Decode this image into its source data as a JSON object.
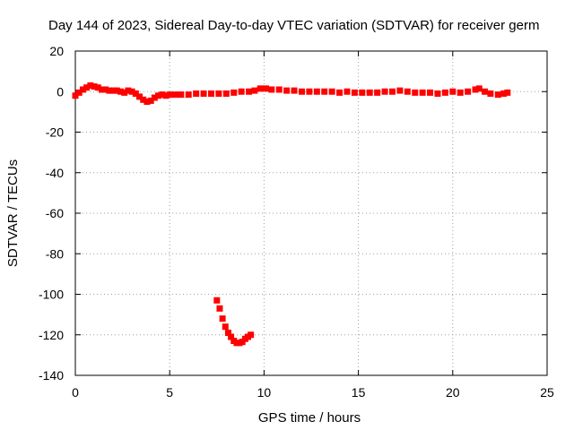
{
  "chart_data": {
    "type": "scatter",
    "title": "Day 144 of 2023, Sidereal Day-to-day VTEC variation (SDTVAR) for receiver germ",
    "xlabel": "GPS time / hours",
    "ylabel": "SDTVAR / TECUs",
    "xlim": [
      0,
      25
    ],
    "ylim": [
      -140,
      20
    ],
    "xticks": [
      0,
      5,
      10,
      15,
      20,
      25
    ],
    "yticks": [
      20,
      0,
      -20,
      -40,
      -60,
      -80,
      -100,
      -120,
      -140
    ],
    "grid": true,
    "series_color": "#ff0000",
    "series": [
      {
        "points": [
          [
            0.0,
            -2
          ],
          [
            0.2,
            -0.5
          ],
          [
            0.4,
            1
          ],
          [
            0.6,
            2
          ],
          [
            0.8,
            3
          ],
          [
            1.0,
            2.5
          ],
          [
            1.2,
            2
          ],
          [
            1.4,
            1
          ],
          [
            1.6,
            1
          ],
          [
            1.8,
            0.5
          ],
          [
            2.0,
            0.5
          ],
          [
            2.2,
            0.5
          ],
          [
            2.4,
            0
          ],
          [
            2.6,
            -0.5
          ],
          [
            2.8,
            0.5
          ],
          [
            3.0,
            0
          ],
          [
            3.2,
            -1
          ],
          [
            3.4,
            -2.5
          ],
          [
            3.6,
            -4
          ],
          [
            3.8,
            -5
          ],
          [
            4.0,
            -4.5
          ],
          [
            4.2,
            -3
          ],
          [
            4.4,
            -2
          ],
          [
            4.6,
            -1.5
          ],
          [
            4.8,
            -2
          ],
          [
            5.0,
            -1.5
          ],
          [
            5.3,
            -1.5
          ],
          [
            5.6,
            -1.5
          ],
          [
            6.0,
            -1.5
          ],
          [
            6.4,
            -1
          ],
          [
            6.8,
            -1
          ],
          [
            7.2,
            -1
          ],
          [
            7.6,
            -1
          ],
          [
            8.0,
            -1
          ],
          [
            8.4,
            -0.5
          ],
          [
            8.8,
            0
          ],
          [
            9.2,
            0
          ],
          [
            9.5,
            0.5
          ],
          [
            9.8,
            1.5
          ],
          [
            10.1,
            1.5
          ],
          [
            10.4,
            1
          ],
          [
            10.8,
            1
          ],
          [
            11.2,
            0.5
          ],
          [
            11.6,
            0.5
          ],
          [
            12.0,
            0
          ],
          [
            12.4,
            0
          ],
          [
            12.8,
            0
          ],
          [
            13.2,
            0
          ],
          [
            13.6,
            0
          ],
          [
            14.0,
            -0.5
          ],
          [
            14.4,
            0
          ],
          [
            14.8,
            -0.5
          ],
          [
            15.2,
            -0.5
          ],
          [
            15.6,
            -0.5
          ],
          [
            16.0,
            -0.5
          ],
          [
            16.4,
            0
          ],
          [
            16.8,
            0
          ],
          [
            17.2,
            0.5
          ],
          [
            17.6,
            0
          ],
          [
            18.0,
            -0.5
          ],
          [
            18.4,
            -0.5
          ],
          [
            18.8,
            -0.5
          ],
          [
            19.2,
            -1
          ],
          [
            19.6,
            -0.5
          ],
          [
            20.0,
            0
          ],
          [
            20.4,
            -0.5
          ],
          [
            20.8,
            0
          ],
          [
            21.2,
            1
          ],
          [
            21.4,
            1.5
          ],
          [
            21.7,
            0
          ],
          [
            22.0,
            -1
          ],
          [
            22.4,
            -1.5
          ],
          [
            22.7,
            -1
          ],
          [
            22.9,
            -0.5
          ],
          [
            7.5,
            -103
          ],
          [
            7.65,
            -107
          ],
          [
            7.8,
            -112
          ],
          [
            7.95,
            -116
          ],
          [
            8.1,
            -119
          ],
          [
            8.25,
            -121
          ],
          [
            8.4,
            -123
          ],
          [
            8.55,
            -124
          ],
          [
            8.7,
            -124
          ],
          [
            8.85,
            -123.5
          ],
          [
            9.0,
            -122
          ],
          [
            9.15,
            -121
          ],
          [
            9.3,
            -120
          ]
        ]
      }
    ]
  }
}
